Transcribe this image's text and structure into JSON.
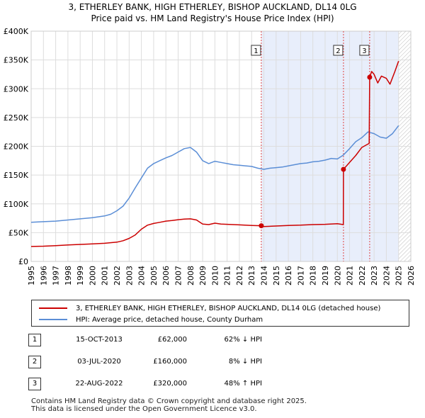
{
  "chart_data": {
    "type": "line",
    "title": "3, ETHERLEY BANK, HIGH ETHERLEY, BISHOP AUCKLAND, DL14 0LG",
    "subtitle": "Price paid vs. HM Land Registry's House Price Index (HPI)",
    "xlim": [
      1995,
      2026
    ],
    "ylim": [
      0,
      400000
    ],
    "x_ticks": [
      "1995",
      "1996",
      "1997",
      "1998",
      "1999",
      "2000",
      "2001",
      "2002",
      "2003",
      "2004",
      "2005",
      "2006",
      "2007",
      "2008",
      "2009",
      "2010",
      "2011",
      "2012",
      "2013",
      "2014",
      "2015",
      "2016",
      "2017",
      "2018",
      "2019",
      "2020",
      "2021",
      "2022",
      "2023",
      "2024",
      "2025",
      "2026"
    ],
    "y_ticks": [
      {
        "value": 0,
        "label": "£0"
      },
      {
        "value": 50000,
        "label": "£50K"
      },
      {
        "value": 100000,
        "label": "£100K"
      },
      {
        "value": 150000,
        "label": "£150K"
      },
      {
        "value": 200000,
        "label": "£200K"
      },
      {
        "value": 250000,
        "label": "£250K"
      },
      {
        "value": 300000,
        "label": "£300K"
      },
      {
        "value": 350000,
        "label": "£350K"
      },
      {
        "value": 400000,
        "label": "£400K"
      }
    ],
    "grid": true,
    "shaded_period": [
      2013.79,
      2025.0
    ],
    "hatched_from": 2025.0,
    "series": [
      {
        "name": "3, ETHERLEY BANK, HIGH ETHERLEY, BISHOP AUCKLAND, DL14 0LG (detached house)",
        "color": "#cc0000",
        "x": [
          1995,
          1996,
          1997,
          1998,
          1999,
          2000,
          2001,
          2002,
          2002.5,
          2003,
          2003.5,
          2004,
          2004.5,
          2005,
          2005.5,
          2006,
          2006.5,
          2007,
          2007.5,
          2008,
          2008.5,
          2009,
          2009.5,
          2010,
          2010.5,
          2011,
          2012,
          2013,
          2013.79,
          2014,
          2015,
          2016,
          2017,
          2018,
          2019,
          2020,
          2020.49,
          2020.5,
          2021,
          2021.5,
          2022,
          2022.6,
          2022.64,
          2022.8,
          2023,
          2023.3,
          2023.6,
          2024,
          2024.3,
          2024.7,
          2025.0
        ],
        "values": [
          26000,
          26500,
          27500,
          28500,
          29500,
          30500,
          31500,
          33500,
          36000,
          40000,
          46000,
          56000,
          63000,
          66000,
          68000,
          70000,
          71000,
          72500,
          73500,
          74000,
          72000,
          65000,
          64000,
          66500,
          65000,
          64500,
          63500,
          62500,
          62000,
          60500,
          61500,
          62500,
          63000,
          64000,
          64500,
          65500,
          64000,
          160000,
          172000,
          184000,
          198000,
          205000,
          320000,
          330000,
          325000,
          310000,
          322000,
          318000,
          308000,
          330000,
          348000
        ]
      },
      {
        "name": "HPI: Average price, detached house, County Durham",
        "color": "#5b8ed6",
        "x": [
          1995,
          1996,
          1997,
          1998,
          1999,
          2000,
          2001,
          2001.5,
          2002,
          2002.5,
          2003,
          2003.5,
          2004,
          2004.5,
          2005,
          2005.5,
          2006,
          2006.5,
          2007,
          2007.5,
          2008,
          2008.5,
          2009,
          2009.5,
          2010,
          2010.5,
          2011,
          2011.5,
          2012,
          2012.5,
          2013,
          2013.5,
          2014,
          2014.5,
          2015,
          2015.5,
          2016,
          2016.5,
          2017,
          2017.5,
          2018,
          2018.5,
          2019,
          2019.5,
          2020,
          2020.5,
          2021,
          2021.5,
          2022,
          2022.5,
          2023,
          2023.5,
          2024,
          2024.5,
          2025.0
        ],
        "values": [
          68000,
          69000,
          70000,
          72000,
          74000,
          76000,
          79000,
          82000,
          88000,
          96000,
          110000,
          128000,
          145000,
          162000,
          170000,
          175000,
          180000,
          184000,
          190000,
          196000,
          198000,
          190000,
          175000,
          170000,
          174000,
          172000,
          170000,
          168000,
          167000,
          166000,
          165000,
          162000,
          160000,
          162000,
          163000,
          164000,
          166000,
          168000,
          170000,
          171000,
          173000,
          174000,
          176000,
          179000,
          178000,
          185000,
          196000,
          208000,
          215000,
          225000,
          222000,
          216000,
          214000,
          222000,
          236000
        ]
      }
    ],
    "markers": [
      {
        "label": "1",
        "x": 2013.79,
        "y": 62000
      },
      {
        "label": "2",
        "x": 2020.5,
        "y": 160000
      },
      {
        "label": "3",
        "x": 2022.64,
        "y": 320000
      }
    ]
  },
  "legend": {
    "property_label": "3, ETHERLEY BANK, HIGH ETHERLEY, BISHOP AUCKLAND, DL14 0LG (detached house)",
    "hpi_label": "HPI: Average price, detached house, County Durham"
  },
  "sales": [
    {
      "num": "1",
      "date": "15-OCT-2013",
      "price": "£62,000",
      "hpi": "62% ↓ HPI"
    },
    {
      "num": "2",
      "date": "03-JUL-2020",
      "price": "£160,000",
      "hpi": "8% ↓ HPI"
    },
    {
      "num": "3",
      "date": "22-AUG-2022",
      "price": "£320,000",
      "hpi": "48% ↑ HPI"
    }
  ],
  "footer": {
    "line1": "Contains HM Land Registry data © Crown copyright and database right 2025.",
    "line2": "This data is licensed under the Open Government Licence v3.0."
  },
  "colors": {
    "property": "#cc0000",
    "hpi": "#5b8ed6",
    "shade": "#e8eefb",
    "grid": "#dddddd",
    "marker_line": "#dd4444"
  }
}
